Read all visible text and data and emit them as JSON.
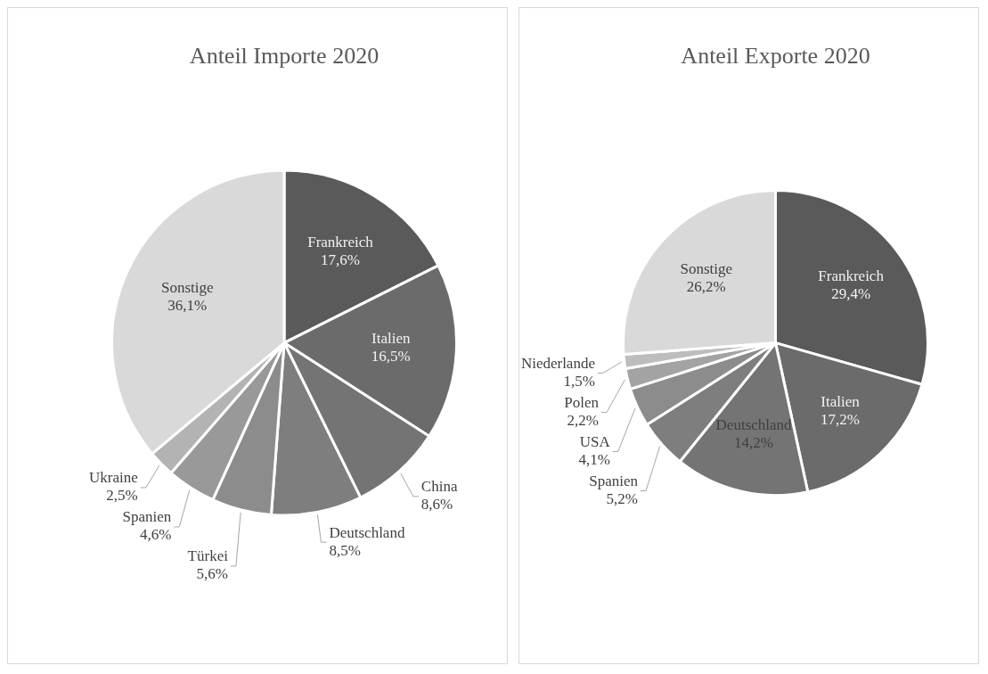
{
  "chart_data": [
    {
      "type": "pie",
      "title": "Anteil Importe 2020",
      "categories": [
        "Frankreich",
        "Italien",
        "China",
        "Deutschland",
        "Türkei",
        "Spanien",
        "Ukraine",
        "Sonstige"
      ],
      "values": [
        17.6,
        16.5,
        8.6,
        8.5,
        5.6,
        4.6,
        2.5,
        36.1
      ],
      "value_labels": [
        "17,6%",
        "16,5%",
        "8,6%",
        "8,5%",
        "5,6%",
        "4,6%",
        "2,5%",
        "36,1%"
      ],
      "colors": [
        "#5a5a5a",
        "#6b6b6b",
        "#747474",
        "#7e7e7e",
        "#8c8c8c",
        "#999999",
        "#b3b3b3",
        "#d9d9d9"
      ]
    },
    {
      "type": "pie",
      "title": "Anteil Exporte 2020",
      "categories": [
        "Frankreich",
        "Italien",
        "Deutschland",
        "Spanien",
        "USA",
        "Polen",
        "Niederlande",
        "Sonstige"
      ],
      "values": [
        29.4,
        17.2,
        14.2,
        5.2,
        4.1,
        2.2,
        1.5,
        26.2
      ],
      "value_labels": [
        "29,4%",
        "17,2%",
        "14,2%",
        "5,2%",
        "4,1%",
        "2,2%",
        "1,5%",
        "26,2%"
      ],
      "colors": [
        "#5a5a5a",
        "#6b6b6b",
        "#747474",
        "#7e7e7e",
        "#8c8c8c",
        "#a3a3a3",
        "#bdbdbd",
        "#d9d9d9"
      ]
    }
  ]
}
